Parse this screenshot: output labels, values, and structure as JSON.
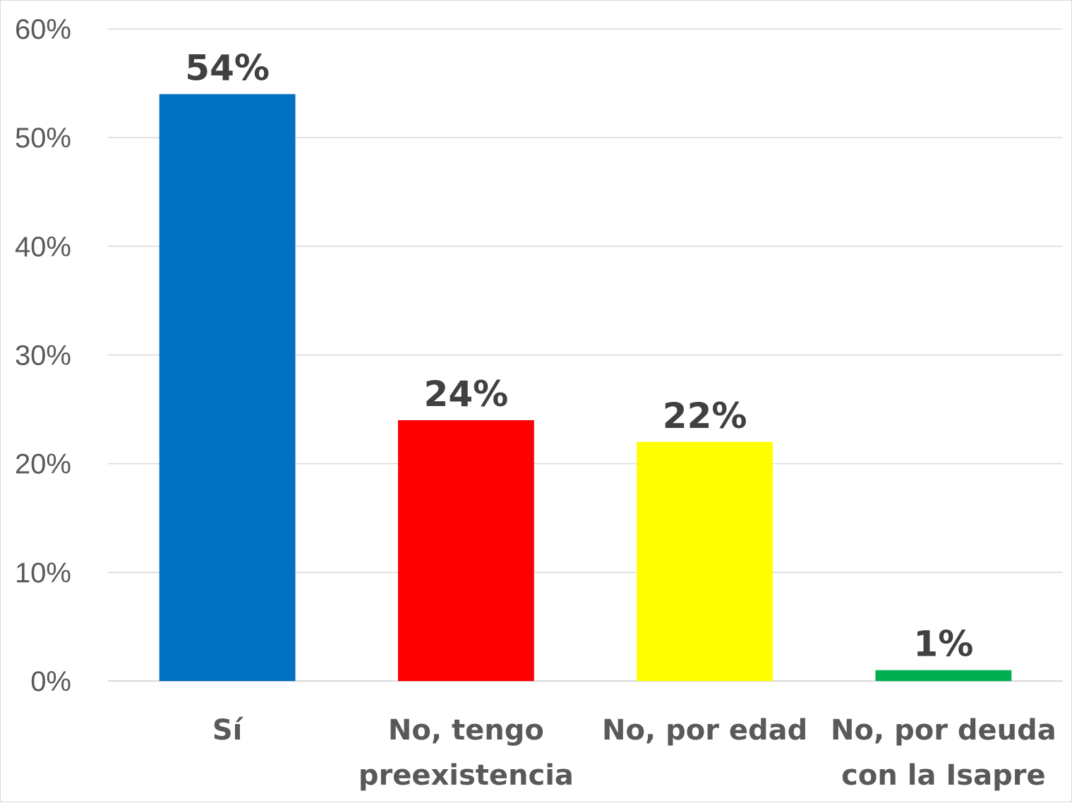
{
  "chart_data": {
    "type": "bar",
    "title": "",
    "xlabel": "",
    "ylabel": "",
    "categories": [
      [
        "Sí"
      ],
      [
        "No, tengo",
        "preexistencia"
      ],
      [
        "No, por edad"
      ],
      [
        "No, por deuda",
        "con la Isapre"
      ]
    ],
    "values": [
      54,
      24,
      22,
      1
    ],
    "data_labels": [
      "54%",
      "24%",
      "22%",
      "1%"
    ],
    "colors": [
      "#0070C0",
      "#FF0000",
      "#FFFF00",
      "#00B050"
    ],
    "ylim": [
      0,
      60
    ],
    "yticks": [
      0,
      10,
      20,
      30,
      40,
      50,
      60
    ],
    "ytick_labels": [
      "0%",
      "10%",
      "20%",
      "30%",
      "40%",
      "50%",
      "60%"
    ],
    "grid": true,
    "legend": "none"
  }
}
